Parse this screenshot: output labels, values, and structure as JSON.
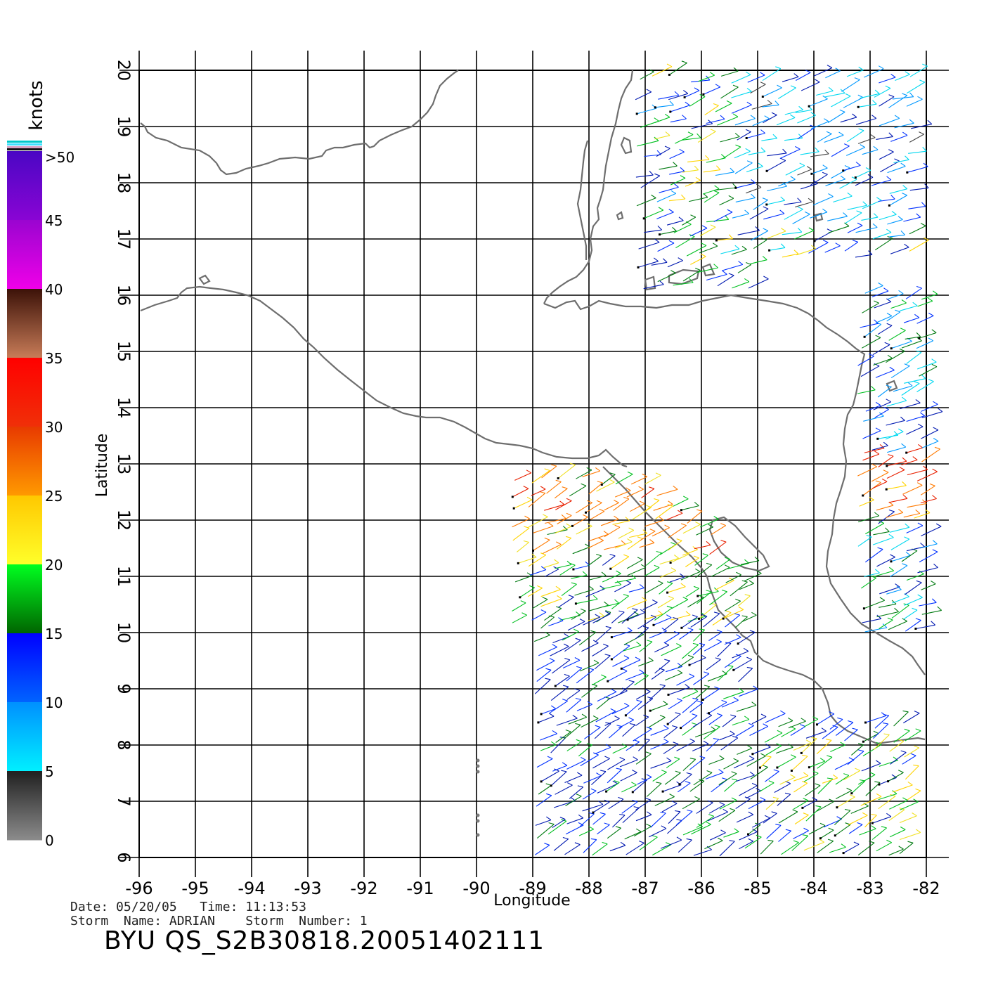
{
  "map": {
    "type": "wind-vector-map",
    "xlabel": "Longitude",
    "ylabel": "Latitude",
    "lon_range": [
      -96,
      -82
    ],
    "lat_range": [
      6,
      20
    ],
    "lon_ticks": [
      "-96",
      "-95",
      "-94",
      "-93",
      "-92",
      "-91",
      "-90",
      "-89",
      "-88",
      "-87",
      "-86",
      "-85",
      "-84",
      "-83",
      "-82"
    ],
    "lat_ticks": [
      "6",
      "7",
      "8",
      "9",
      "10",
      "11",
      "12",
      "13",
      "14",
      "15",
      "16",
      "17",
      "18",
      "19",
      "20"
    ],
    "grid": true,
    "coastline_color": "#6e6e6e"
  },
  "legend": {
    "unit": "knots",
    "placement": "left",
    "labels": [
      ">50",
      "45",
      "40",
      "35",
      "30",
      "25",
      "20",
      "15",
      "10",
      "5",
      "0"
    ],
    "bands": [
      {
        "from": 45,
        "to": 50,
        "top": "#4a06c4",
        "bottom": "#8a05d4"
      },
      {
        "from": 40,
        "to": 45,
        "top": "#9a05d0",
        "bottom": "#f000e8"
      },
      {
        "from": 35,
        "to": 40,
        "top": "#3c1208",
        "bottom": "#c87c58"
      },
      {
        "from": 30,
        "to": 35,
        "top": "#ff0000",
        "bottom": "#f03008"
      },
      {
        "from": 25,
        "to": 30,
        "top": "#e83a00",
        "bottom": "#ff9a00"
      },
      {
        "from": 20,
        "to": 25,
        "top": "#ffc800",
        "bottom": "#ffff2a"
      },
      {
        "from": 15,
        "to": 20,
        "top": "#00ff20",
        "bottom": "#006400"
      },
      {
        "from": 10,
        "to": 15,
        "top": "#0000ff",
        "bottom": "#0064ff"
      },
      {
        "from": 5,
        "to": 10,
        "top": "#0090ff",
        "bottom": "#00f0ff"
      },
      {
        "from": 0,
        "to": 5,
        "top": "#202020",
        "bottom": "#8c8c8c"
      }
    ]
  },
  "info": {
    "line1": "Date: 05/20/05   Time: 11:13:53",
    "line2": "Storm  Name: ADRIAN    Storm  Number: 1",
    "title": "BYU  QS_S2B30818.20051402111"
  }
}
